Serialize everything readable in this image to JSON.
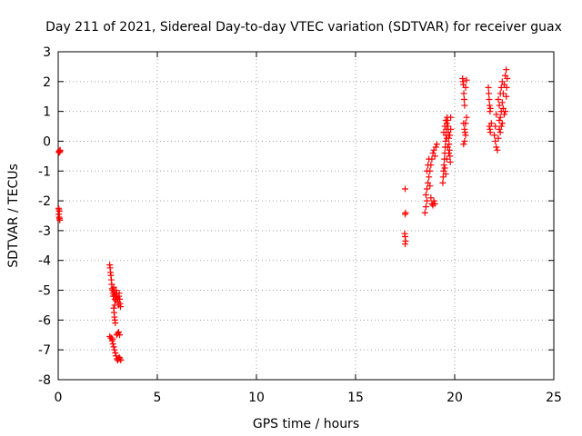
{
  "chart_data": {
    "type": "scatter",
    "title": "Day 211 of 2021, Sidereal Day-to-day VTEC variation (SDTVAR) for receiver guax",
    "xlabel": "GPS time / hours",
    "ylabel": "SDTVAR / TECUs",
    "xlim": [
      0,
      25
    ],
    "ylim": [
      -8,
      3
    ],
    "xticks": [
      0,
      5,
      10,
      15,
      20,
      25
    ],
    "yticks": [
      -8,
      -7,
      -6,
      -5,
      -4,
      -3,
      -2,
      -1,
      0,
      1,
      2,
      3
    ],
    "grid": true,
    "marker": "plus",
    "color": "#ff0000",
    "series": [
      {
        "name": "SDTVAR",
        "points": [
          [
            0.03,
            -0.35
          ],
          [
            0.05,
            -0.38
          ],
          [
            0.07,
            -0.32
          ],
          [
            0.09,
            -0.35
          ],
          [
            0.1,
            -0.3
          ],
          [
            0.02,
            -2.25
          ],
          [
            0.04,
            -2.3
          ],
          [
            0.06,
            -2.35
          ],
          [
            0.03,
            -2.45
          ],
          [
            0.05,
            -2.55
          ],
          [
            0.07,
            -2.6
          ],
          [
            0.08,
            -2.65
          ],
          [
            2.6,
            -4.15
          ],
          [
            2.62,
            -4.25
          ],
          [
            2.64,
            -4.4
          ],
          [
            2.66,
            -4.5
          ],
          [
            2.68,
            -4.65
          ],
          [
            2.7,
            -4.8
          ],
          [
            2.72,
            -4.95
          ],
          [
            2.74,
            -5.0
          ],
          [
            2.76,
            -5.1
          ],
          [
            2.78,
            -5.2
          ],
          [
            2.8,
            -4.9
          ],
          [
            2.82,
            -5.05
          ],
          [
            2.84,
            -5.15
          ],
          [
            2.86,
            -5.3
          ],
          [
            2.88,
            -5.2
          ],
          [
            2.9,
            -5.35
          ],
          [
            2.92,
            -5.0
          ],
          [
            2.94,
            -5.1
          ],
          [
            2.96,
            -5.2
          ],
          [
            2.98,
            -5.25
          ],
          [
            3.0,
            -5.3
          ],
          [
            3.02,
            -5.4
          ],
          [
            3.04,
            -5.5
          ],
          [
            3.06,
            -5.2
          ],
          [
            3.08,
            -5.1
          ],
          [
            3.1,
            -5.3
          ],
          [
            3.12,
            -5.45
          ],
          [
            3.14,
            -5.55
          ],
          [
            2.85,
            -5.5
          ],
          [
            2.8,
            -5.6
          ],
          [
            2.82,
            -5.75
          ],
          [
            2.84,
            -5.9
          ],
          [
            2.86,
            -6.0
          ],
          [
            2.88,
            -6.1
          ],
          [
            2.7,
            -6.6
          ],
          [
            2.72,
            -6.7
          ],
          [
            2.74,
            -6.65
          ],
          [
            2.76,
            -6.8
          ],
          [
            2.8,
            -6.9
          ],
          [
            2.84,
            -7.0
          ],
          [
            2.88,
            -7.1
          ],
          [
            2.92,
            -7.2
          ],
          [
            2.96,
            -7.3
          ],
          [
            3.0,
            -7.35
          ],
          [
            3.04,
            -7.3
          ],
          [
            3.08,
            -7.25
          ],
          [
            3.12,
            -7.3
          ],
          [
            3.16,
            -7.35
          ],
          [
            2.95,
            -6.5
          ],
          [
            3.0,
            -6.45
          ],
          [
            3.05,
            -6.4
          ],
          [
            3.1,
            -6.5
          ],
          [
            2.6,
            -6.55
          ],
          [
            2.65,
            -6.6
          ],
          [
            17.5,
            -1.6
          ],
          [
            17.52,
            -2.4
          ],
          [
            17.5,
            -2.45
          ],
          [
            17.48,
            -3.1
          ],
          [
            17.5,
            -3.2
          ],
          [
            17.52,
            -3.35
          ],
          [
            17.5,
            -3.45
          ],
          [
            18.5,
            -2.4
          ],
          [
            18.55,
            -2.2
          ],
          [
            18.6,
            -2.0
          ],
          [
            18.55,
            -1.8
          ],
          [
            18.6,
            -1.6
          ],
          [
            18.65,
            -1.4
          ],
          [
            18.7,
            -1.2
          ],
          [
            18.75,
            -1.0
          ],
          [
            18.8,
            -0.8
          ],
          [
            18.85,
            -0.6
          ],
          [
            18.9,
            -0.4
          ],
          [
            18.95,
            -0.3
          ],
          [
            19.0,
            -0.5
          ],
          [
            18.6,
            -1.0
          ],
          [
            18.65,
            -0.8
          ],
          [
            18.7,
            -0.6
          ],
          [
            18.75,
            -1.5
          ],
          [
            18.8,
            -1.9
          ],
          [
            18.85,
            -2.1
          ],
          [
            18.9,
            -2.15
          ],
          [
            18.95,
            -2.0
          ],
          [
            19.0,
            -2.1
          ],
          [
            19.05,
            -0.2
          ],
          [
            19.1,
            -0.1
          ],
          [
            19.4,
            -1.4
          ],
          [
            19.42,
            -1.2
          ],
          [
            19.44,
            -1.0
          ],
          [
            19.46,
            -0.8
          ],
          [
            19.48,
            -0.6
          ],
          [
            19.5,
            -0.4
          ],
          [
            19.52,
            -0.2
          ],
          [
            19.54,
            0.0
          ],
          [
            19.56,
            0.2
          ],
          [
            19.58,
            0.4
          ],
          [
            19.6,
            0.6
          ],
          [
            19.62,
            0.8
          ],
          [
            19.64,
            0.7
          ],
          [
            19.66,
            0.5
          ],
          [
            19.68,
            0.3
          ],
          [
            19.7,
            0.1
          ],
          [
            19.72,
            -0.1
          ],
          [
            19.74,
            -0.3
          ],
          [
            19.76,
            -0.5
          ],
          [
            19.78,
            -0.7
          ],
          [
            19.8,
            0.8
          ],
          [
            19.45,
            0.3
          ],
          [
            19.5,
            0.5
          ],
          [
            19.55,
            0.7
          ],
          [
            19.6,
            0.1
          ],
          [
            19.65,
            -0.2
          ],
          [
            19.7,
            -0.4
          ],
          [
            19.75,
            0.2
          ],
          [
            19.8,
            0.4
          ],
          [
            19.5,
            -0.9
          ],
          [
            19.55,
            -1.1
          ],
          [
            19.6,
            -0.6
          ],
          [
            20.4,
            2.1
          ],
          [
            20.42,
            2.0
          ],
          [
            20.44,
            1.9
          ],
          [
            20.46,
            1.6
          ],
          [
            20.48,
            1.4
          ],
          [
            20.5,
            1.2
          ],
          [
            20.45,
            0.6
          ],
          [
            20.5,
            0.4
          ],
          [
            20.55,
            0.2
          ],
          [
            20.5,
            0.0
          ],
          [
            20.45,
            -0.1
          ],
          [
            20.55,
            0.6
          ],
          [
            20.6,
            0.8
          ],
          [
            20.6,
            2.05
          ],
          [
            20.55,
            1.8
          ],
          [
            20.52,
            0.3
          ],
          [
            21.7,
            1.8
          ],
          [
            21.72,
            1.6
          ],
          [
            21.74,
            1.4
          ],
          [
            21.76,
            1.2
          ],
          [
            21.78,
            1.0
          ],
          [
            21.8,
            1.1
          ],
          [
            21.75,
            0.5
          ],
          [
            21.78,
            0.4
          ],
          [
            21.8,
            0.3
          ],
          [
            21.85,
            0.6
          ],
          [
            22.0,
            0.2
          ],
          [
            22.05,
            0.0
          ],
          [
            22.1,
            -0.2
          ],
          [
            22.15,
            -0.3
          ],
          [
            22.2,
            0.1
          ],
          [
            22.25,
            0.4
          ],
          [
            22.3,
            0.8
          ],
          [
            22.35,
            1.0
          ],
          [
            22.4,
            1.3
          ],
          [
            22.45,
            1.6
          ],
          [
            22.5,
            1.9
          ],
          [
            22.55,
            2.2
          ],
          [
            22.6,
            2.4
          ],
          [
            22.2,
            1.4
          ],
          [
            22.25,
            1.2
          ],
          [
            22.3,
            1.6
          ],
          [
            22.35,
            1.8
          ],
          [
            22.4,
            2.0
          ],
          [
            22.45,
            1.1
          ],
          [
            22.5,
            0.9
          ],
          [
            22.55,
            1.0
          ],
          [
            22.6,
            1.5
          ],
          [
            22.62,
            1.8
          ],
          [
            22.65,
            2.1
          ],
          [
            22.4,
            0.6
          ],
          [
            22.35,
            0.5
          ],
          [
            22.3,
            0.3
          ],
          [
            22.25,
            0.7
          ],
          [
            22.1,
            0.9
          ],
          [
            22.05,
            0.5
          ]
        ]
      }
    ]
  }
}
